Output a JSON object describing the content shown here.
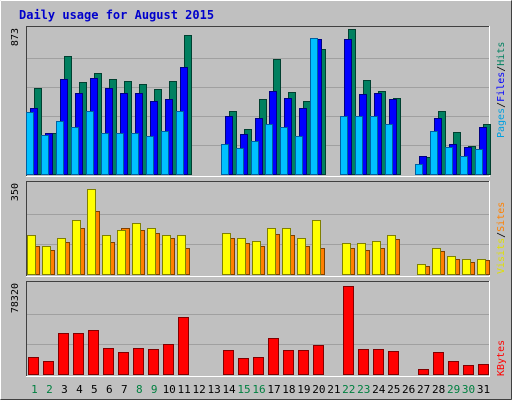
{
  "chart_data": {
    "type": "bar",
    "title": "Daily usage for August 2015",
    "days": [
      "1",
      "2",
      "3",
      "4",
      "5",
      "6",
      "7",
      "8",
      "9",
      "10",
      "11",
      "12",
      "13",
      "14",
      "15",
      "16",
      "17",
      "18",
      "19",
      "20",
      "21",
      "22",
      "23",
      "24",
      "25",
      "26",
      "27",
      "28",
      "29",
      "30",
      "31"
    ],
    "weekend_days": [
      "1",
      "2",
      "8",
      "9",
      "15",
      "16",
      "22",
      "23",
      "29",
      "30"
    ],
    "colors": {
      "background": "#c0c0c0",
      "plot_background": "#c0c0c0",
      "grid": "#a0a0a0",
      "title": "#0000cc",
      "weekday_label": "#000000",
      "weekend_label": "#008040"
    },
    "panels": [
      {
        "ymax_label": "873",
        "ymax": 873,
        "series": [
          {
            "name": "Pages",
            "color": "#00c0ff",
            "stroke": "#0060a0",
            "values": [
              372,
              237,
              317,
              280,
              381,
              245,
              245,
              245,
              231,
              256,
              381,
              0,
              0,
              180,
              158,
              198,
              300,
              280,
              231,
              820,
              0,
              350,
              350,
              350,
              300,
              0,
              60,
              256,
              160,
              110,
              150
            ]
          },
          {
            "name": "Files",
            "color": "#0000ff",
            "stroke": "#000080",
            "values": [
              400,
              245,
              570,
              490,
              575,
              520,
              485,
              490,
              440,
              450,
              645,
              0,
              0,
              350,
              240,
              335,
              500,
              460,
              400,
              810,
              0,
              810,
              480,
              485,
              450,
              0,
              110,
              340,
              180,
              160,
              280
            ]
          },
          {
            "name": "Hits",
            "color": "#008060",
            "stroke": "#004030",
            "values": [
              520,
              245,
              712,
              555,
              610,
              570,
              560,
              540,
              510,
              560,
              835,
              0,
              0,
              380,
              270,
              450,
              690,
              495,
              440,
              750,
              0,
              870,
              565,
              500,
              460,
              0,
              100,
              380,
              250,
              170,
              300
            ]
          }
        ]
      },
      {
        "ymax_label": "350",
        "ymax": 350,
        "series": [
          {
            "name": "Visits",
            "color": "#ffff00",
            "stroke": "#808000",
            "values": [
              150,
              110,
              140,
              210,
              330,
              150,
              170,
              200,
              180,
              150,
              150,
              0,
              0,
              160,
              140,
              130,
              180,
              180,
              140,
              210,
              0,
              120,
              120,
              130,
              150,
              0,
              40,
              100,
              70,
              60,
              60
            ]
          },
          {
            "name": "Sites",
            "color": "#ff8000",
            "stroke": "#804000",
            "values": [
              110,
              95,
              125,
              180,
              245,
              125,
              180,
              170,
              160,
              140,
              100,
              0,
              0,
              140,
              120,
              110,
              155,
              150,
              110,
              100,
              0,
              100,
              95,
              100,
              135,
              0,
              30,
              90,
              60,
              45,
              55
            ]
          }
        ]
      },
      {
        "ymax_label": "78320",
        "ymax": 78320,
        "series": [
          {
            "name": "KBytes",
            "color": "#ff0000",
            "stroke": "#800000",
            "values": [
              15000,
              11000,
              36000,
              36000,
              38000,
              23000,
              19000,
              23000,
              22000,
              26000,
              50000,
              0,
              0,
              21000,
              14000,
              15000,
              31000,
              21000,
              21000,
              25000,
              0,
              77000,
              22000,
              22000,
              20000,
              0,
              4000,
              19000,
              11000,
              7500,
              9000
            ]
          }
        ]
      }
    ]
  }
}
